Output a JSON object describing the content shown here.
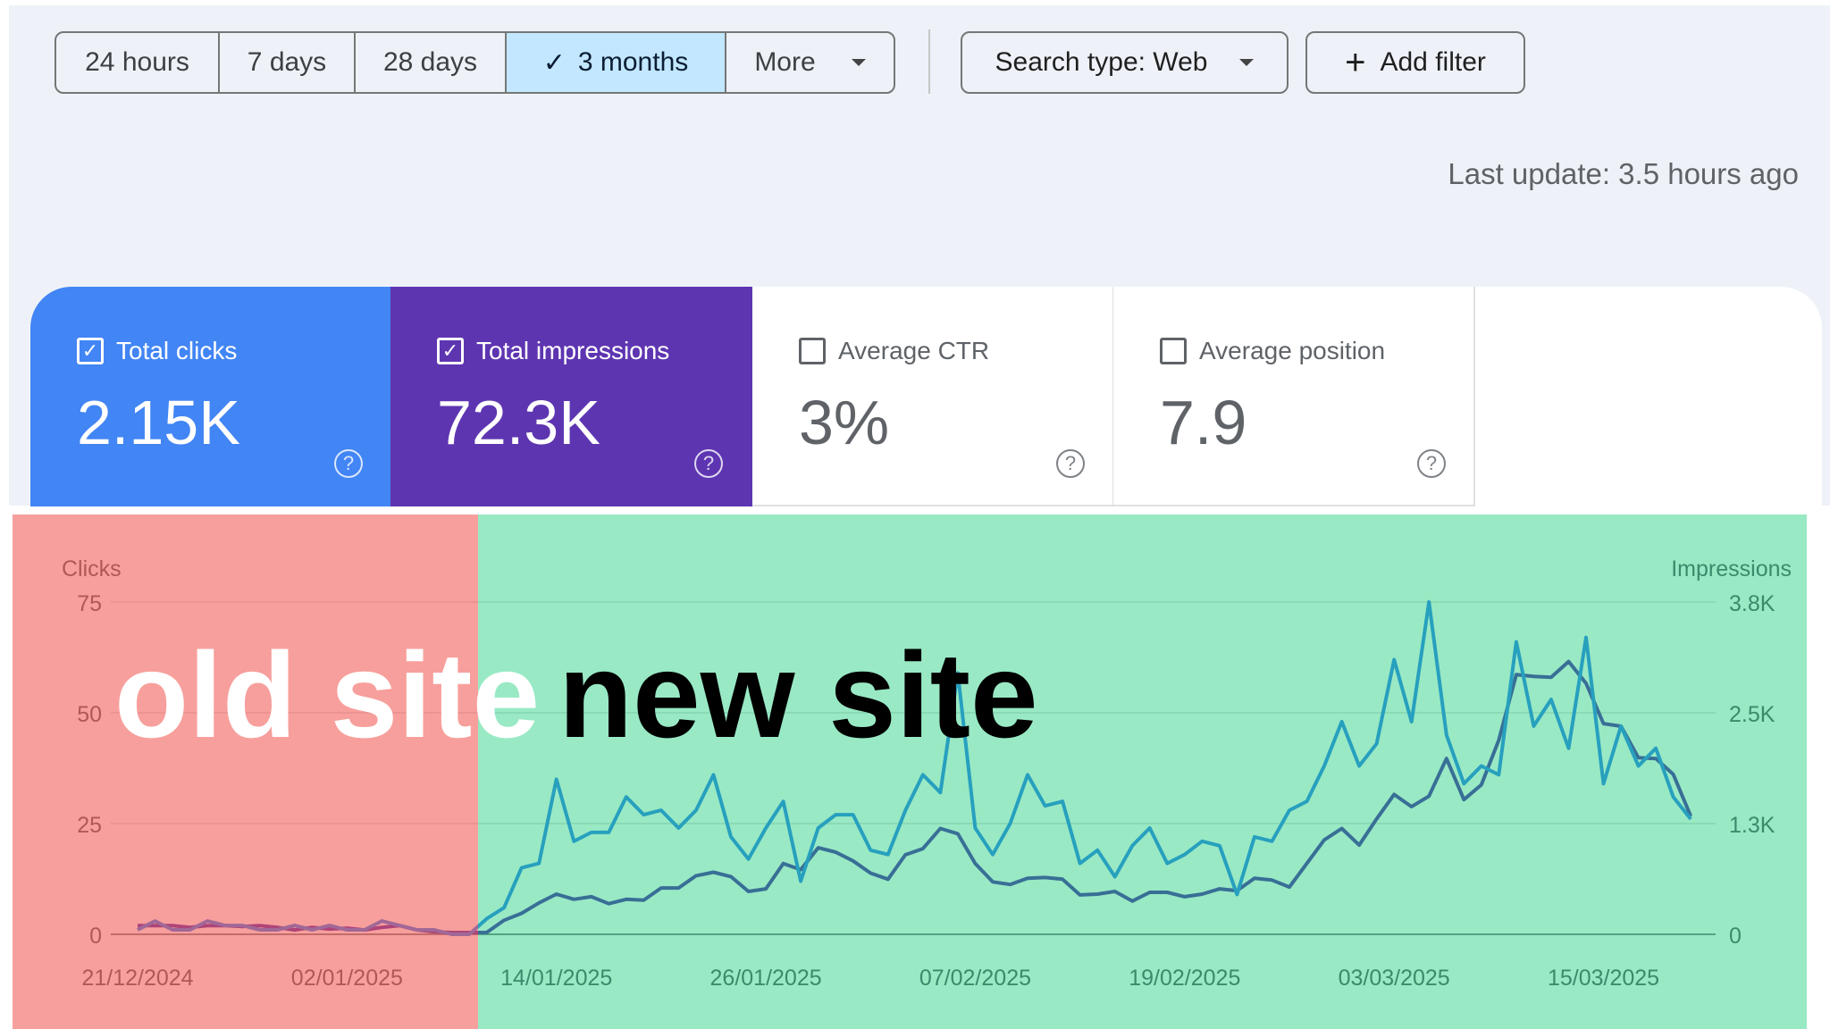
{
  "toolbar": {
    "ranges": [
      {
        "label": "24 hours",
        "selected": false
      },
      {
        "label": "7 days",
        "selected": false
      },
      {
        "label": "28 days",
        "selected": false
      },
      {
        "label": "3 months",
        "selected": true
      },
      {
        "label": "More",
        "selected": false
      }
    ],
    "search_type": "Search type: Web",
    "add_filter": "Add filter",
    "last_update": "Last update: 3.5 hours ago"
  },
  "metrics": [
    {
      "label": "Total clicks",
      "value": "2.15K",
      "checked": true,
      "color": "#4285f4"
    },
    {
      "label": "Total impressions",
      "value": "72.3K",
      "checked": true,
      "color": "#5e35b1"
    },
    {
      "label": "Average CTR",
      "value": "3%",
      "checked": false
    },
    {
      "label": "Average position",
      "value": "7.9",
      "checked": false
    }
  ],
  "annotations": {
    "old": "old site",
    "new": "new site",
    "old_color": "#f0504a",
    "new_color": "#00c86e"
  },
  "chart_data": {
    "type": "line",
    "left_axis_label": "Clicks",
    "right_axis_label": "Impressions",
    "left_ticks": [
      "0",
      "25",
      "50",
      "75"
    ],
    "left_ylim": [
      0,
      75
    ],
    "right_ticks": [
      "0",
      "1.3K",
      "2.5K",
      "3.8K"
    ],
    "right_ylim": [
      0,
      3.8
    ],
    "x_start": "21/12/2024",
    "x_tick_labels": [
      "21/12/2024",
      "02/01/2025",
      "14/01/2025",
      "26/01/2025",
      "07/02/2025",
      "19/02/2025",
      "03/03/2025",
      "15/03/2025"
    ],
    "x_tick_days": [
      0,
      12,
      24,
      36,
      48,
      60,
      72,
      84
    ],
    "series": [
      {
        "name": "Clicks",
        "axis": "left",
        "color": "#4285f4",
        "values": [
          1,
          3,
          1,
          1,
          3,
          2,
          2,
          1,
          1,
          2,
          1,
          2,
          1,
          1,
          3,
          2,
          1,
          1,
          0,
          0,
          3.5,
          6,
          15,
          16,
          35,
          21,
          23,
          23,
          31,
          27,
          28,
          24,
          28,
          36,
          22,
          17,
          24,
          30,
          12,
          24,
          27,
          27,
          19,
          18,
          28,
          36,
          32,
          59,
          24,
          18,
          25,
          36,
          29,
          30,
          16,
          19,
          13,
          20,
          24,
          16,
          18,
          21,
          20,
          9,
          22,
          21,
          28,
          30,
          38,
          48,
          38,
          43,
          62,
          48,
          75,
          45,
          34,
          38,
          36,
          66,
          47,
          53,
          42,
          67,
          34,
          47,
          38,
          42,
          31,
          26
        ]
      },
      {
        "name": "Impressions (K)",
        "axis": "right",
        "color": "#5e35b1",
        "values": [
          0.1,
          0.1,
          0.1,
          0.08,
          0.1,
          0.1,
          0.09,
          0.1,
          0.08,
          0.05,
          0.08,
          0.06,
          0.07,
          0.05,
          0.08,
          0.1,
          0.05,
          0.03,
          0.02,
          0.02,
          0.02,
          0.16,
          0.24,
          0.36,
          0.46,
          0.4,
          0.43,
          0.35,
          0.4,
          0.39,
          0.53,
          0.53,
          0.67,
          0.71,
          0.66,
          0.49,
          0.52,
          0.81,
          0.74,
          0.99,
          0.94,
          0.84,
          0.7,
          0.63,
          0.91,
          0.98,
          1.21,
          1.15,
          0.81,
          0.6,
          0.57,
          0.64,
          0.65,
          0.63,
          0.45,
          0.46,
          0.49,
          0.38,
          0.48,
          0.48,
          0.43,
          0.46,
          0.52,
          0.5,
          0.64,
          0.62,
          0.54,
          0.81,
          1.08,
          1.21,
          1.02,
          1.32,
          1.6,
          1.46,
          1.58,
          2.01,
          1.54,
          1.71,
          2.22,
          2.97,
          2.95,
          2.94,
          3.12,
          2.87,
          2.41,
          2.38,
          2.02,
          2.01,
          1.83,
          1.35
        ]
      }
    ]
  }
}
